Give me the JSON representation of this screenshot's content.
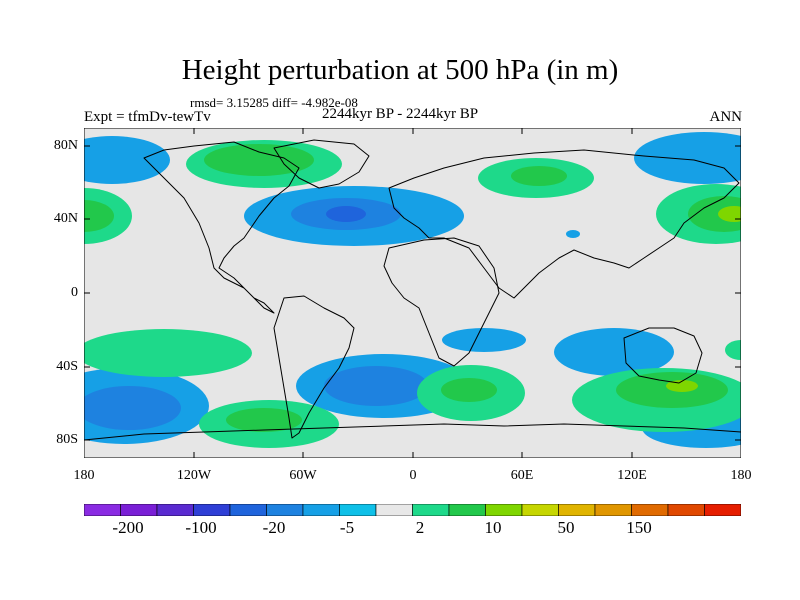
{
  "figure": {
    "title": "Height perturbation at 500 hPa (in m)",
    "stats": "rmsd= 3.15285 diff= -4.982e-08",
    "experiment": "Expt = tfmDv-tewTv",
    "period": "2244kyr BP - 2244kyr BP",
    "season": "ANN"
  },
  "axes": {
    "lat_labels": [
      "80N",
      "40N",
      "0",
      "40S",
      "80S"
    ],
    "lon_labels": [
      "180",
      "120W",
      "60W",
      "0",
      "60E",
      "120E",
      "180"
    ]
  },
  "colorbar": {
    "labels": [
      "-200",
      "-100",
      "-20",
      "-5",
      "2",
      "10",
      "50",
      "150"
    ],
    "colors": [
      "#8a2be2",
      "#7a1fd6",
      "#5a2ad0",
      "#2f3fd6",
      "#1f64dc",
      "#1e82e0",
      "#16a0e6",
      "#0fc0e8",
      "#e8e8e8",
      "#1ed98a",
      "#22c84b",
      "#7fd600",
      "#c6d600",
      "#e0b400",
      "#e09600",
      "#e06a00",
      "#e04800",
      "#e61e00"
    ]
  },
  "colors": {
    "ocean_land_bg": "#e6e6e6",
    "coast": "#000000"
  }
}
